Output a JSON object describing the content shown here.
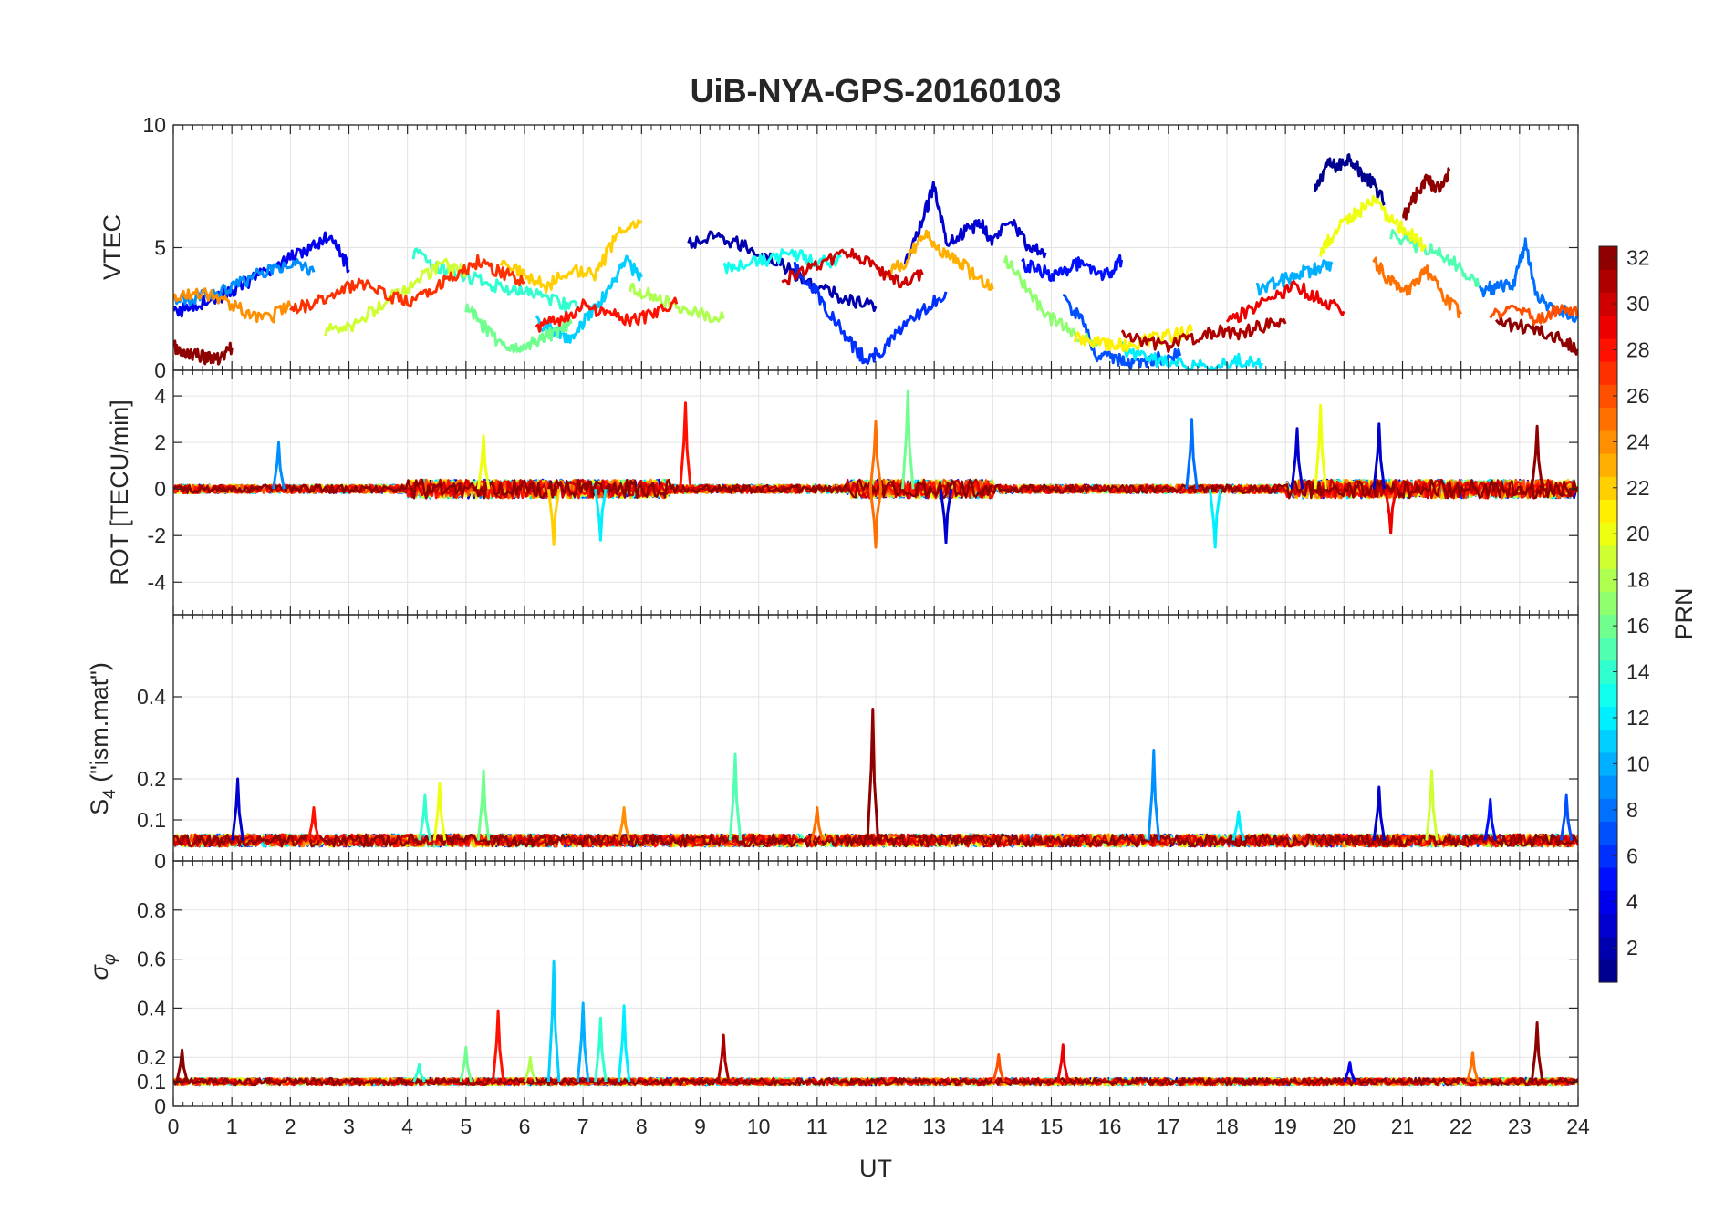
{
  "chart_data": {
    "type": "line",
    "title": "UiB-NYA-GPS-20160103",
    "xlabel": "UT",
    "x_range": [
      0,
      24
    ],
    "x_ticks": [
      "0",
      "1",
      "2",
      "3",
      "4",
      "5",
      "6",
      "7",
      "8",
      "9",
      "10",
      "11",
      "12",
      "13",
      "14",
      "15",
      "16",
      "17",
      "18",
      "19",
      "20",
      "21",
      "22",
      "23",
      "24"
    ],
    "grid": true,
    "colorbar": {
      "label": "PRN",
      "range": [
        1,
        32
      ],
      "colormap": "jet",
      "ticks": [
        "2",
        "4",
        "6",
        "8",
        "10",
        "12",
        "14",
        "16",
        "18",
        "20",
        "22",
        "24",
        "26",
        "28",
        "30",
        "32"
      ],
      "tick_values": [
        2,
        4,
        6,
        8,
        10,
        12,
        14,
        16,
        18,
        20,
        22,
        24,
        26,
        28,
        30,
        32
      ]
    },
    "panels": [
      {
        "id": "vtec",
        "ylabel": "VTEC",
        "ylim": [
          0,
          10
        ],
        "y_tick_values": [
          0,
          5,
          10
        ],
        "y_ticks": [
          "0",
          "5",
          "10"
        ],
        "series": [
          {
            "prn": 1,
            "x": [
              19.5,
              19.7,
              19.9,
              20.1,
              20.3,
              20.5,
              20.7
            ],
            "y": [
              7.2,
              8.4,
              8.3,
              8.7,
              8.0,
              7.6,
              6.8
            ]
          },
          {
            "prn": 2,
            "x": [
              8.8,
              9.2,
              9.6,
              10.0,
              10.4,
              10.8,
              11.2,
              11.6,
              12.0
            ],
            "y": [
              5.1,
              5.4,
              5.2,
              4.8,
              4.3,
              3.6,
              3.2,
              2.8,
              2.6
            ]
          },
          {
            "prn": 3,
            "x": [
              12.5,
              12.8,
              13.0,
              13.2,
              13.5,
              13.8,
              14.0,
              14.3,
              14.6,
              14.9
            ],
            "y": [
              4.2,
              6.1,
              7.6,
              5.3,
              5.6,
              6.0,
              5.2,
              6.3,
              5.0,
              4.8
            ]
          },
          {
            "prn": 4,
            "x": [
              0.0,
              0.4,
              0.8,
              1.2,
              1.6,
              2.0,
              2.4,
              2.7,
              3.0
            ],
            "y": [
              2.3,
              2.7,
              3.0,
              3.5,
              4.0,
              4.6,
              5.1,
              5.6,
              4.1
            ]
          },
          {
            "prn": 5,
            "x": [
              14.5,
              14.8,
              15.1,
              15.4,
              15.7,
              16.0,
              16.2
            ],
            "y": [
              4.3,
              4.1,
              3.8,
              4.4,
              4.0,
              3.9,
              4.5
            ]
          },
          {
            "prn": 6,
            "x": [
              10.6,
              10.9,
              11.2,
              11.5,
              11.8,
              12.1,
              12.4,
              12.8,
              13.2
            ],
            "y": [
              4.2,
              3.5,
              2.4,
              1.3,
              0.5,
              0.7,
              1.6,
              2.4,
              3.2
            ]
          },
          {
            "prn": 7,
            "x": [
              15.2,
              15.5,
              15.8,
              16.1,
              16.4,
              16.8,
              17.2
            ],
            "y": [
              2.9,
              2.1,
              0.5,
              0.5,
              0.3,
              0.5,
              0.6
            ]
          },
          {
            "prn": 8,
            "x": [
              22.3,
              22.6,
              22.9,
              23.1,
              23.3,
              23.6,
              24.0
            ],
            "y": [
              3.2,
              3.4,
              3.5,
              5.2,
              3.0,
              2.5,
              2.2
            ]
          },
          {
            "prn": 9,
            "x": [
              0.0,
              0.4,
              0.8,
              1.2,
              1.6,
              2.0,
              2.4
            ],
            "y": [
              2.8,
              3.0,
              3.2,
              3.6,
              4.1,
              4.4,
              4.0
            ]
          },
          {
            "prn": 10,
            "x": [
              18.5,
              18.9,
              19.2,
              19.5,
              19.8
            ],
            "y": [
              3.3,
              3.6,
              3.9,
              4.1,
              4.3
            ]
          },
          {
            "prn": 11,
            "x": [
              6.2,
              6.5,
              6.8,
              7.1,
              7.4,
              7.7,
              8.0
            ],
            "y": [
              2.0,
              1.6,
              1.2,
              2.3,
              3.1,
              4.5,
              3.8
            ]
          },
          {
            "prn": 12,
            "x": [
              16.2,
              16.6,
              17.0,
              17.4,
              17.8,
              18.2,
              18.6
            ],
            "y": [
              0.9,
              0.5,
              0.3,
              0.2,
              0.3,
              0.4,
              0.3
            ]
          },
          {
            "prn": 13,
            "x": [
              9.4,
              9.8,
              10.2,
              10.6,
              11.0,
              11.4
            ],
            "y": [
              4.1,
              4.4,
              4.5,
              4.8,
              4.3,
              4.6
            ]
          },
          {
            "prn": 14,
            "x": [
              4.1,
              4.5,
              4.9,
              5.3,
              5.7,
              6.1,
              6.5,
              6.9
            ],
            "y": [
              4.8,
              4.2,
              3.9,
              3.6,
              3.3,
              3.1,
              2.8,
              2.5
            ]
          },
          {
            "prn": 15,
            "x": [
              20.8,
              21.2,
              21.6,
              22.0,
              22.3
            ],
            "y": [
              5.6,
              5.1,
              4.8,
              4.2,
              3.4
            ]
          },
          {
            "prn": 16,
            "x": [
              5.0,
              5.3,
              5.6,
              5.9,
              6.2,
              6.5,
              6.8
            ],
            "y": [
              2.6,
              1.8,
              1.1,
              0.9,
              1.2,
              1.5,
              1.9
            ]
          },
          {
            "prn": 17,
            "x": [
              14.2,
              14.6,
              15.0,
              15.4,
              15.8
            ],
            "y": [
              4.6,
              3.2,
              2.1,
              1.5,
              1.1
            ]
          },
          {
            "prn": 18,
            "x": [
              7.8,
              8.2,
              8.6,
              9.0,
              9.4
            ],
            "y": [
              3.4,
              3.0,
              2.6,
              2.3,
              2.1
            ]
          },
          {
            "prn": 19,
            "x": [
              2.6,
              3.0,
              3.4,
              3.8,
              4.2,
              4.6,
              5.0
            ],
            "y": [
              1.6,
              1.7,
              2.4,
              3.1,
              3.7,
              4.3,
              4.0
            ]
          },
          {
            "prn": 20,
            "x": [
              19.6,
              19.9,
              20.2,
              20.5,
              20.8,
              21.1,
              21.4
            ],
            "y": [
              4.8,
              5.8,
              6.4,
              6.9,
              6.1,
              5.6,
              5.0
            ]
          },
          {
            "prn": 21,
            "x": [
              15.4,
              15.8,
              16.2,
              16.6,
              17.0,
              17.4
            ],
            "y": [
              1.3,
              1.1,
              1.0,
              1.2,
              1.4,
              1.6
            ]
          },
          {
            "prn": 22,
            "x": [
              5.6,
              6.0,
              6.4,
              6.8,
              7.2,
              7.6,
              8.0
            ],
            "y": [
              4.4,
              3.9,
              3.4,
              4.2,
              3.8,
              5.6,
              6.1
            ]
          },
          {
            "prn": 23,
            "x": [
              12.2,
              12.5,
              12.8,
              13.1,
              13.4,
              13.7,
              14.0
            ],
            "y": [
              3.9,
              4.4,
              5.6,
              4.9,
              4.5,
              3.8,
              3.3
            ]
          },
          {
            "prn": 24,
            "x": [
              0.0,
              0.4,
              0.8,
              1.2,
              1.6,
              2.0
            ],
            "y": [
              3.0,
              3.2,
              2.9,
              2.4,
              2.1,
              2.6
            ]
          },
          {
            "prn": 25,
            "x": [
              20.5,
              20.8,
              21.1,
              21.4,
              21.7,
              22.0
            ],
            "y": [
              4.5,
              3.6,
              3.2,
              4.1,
              3.0,
              2.3
            ]
          },
          {
            "prn": 26,
            "x": [
              22.5,
              22.9,
              23.3,
              23.7,
              24.0
            ],
            "y": [
              2.2,
              2.4,
              2.1,
              2.5,
              2.4
            ]
          },
          {
            "prn": 27,
            "x": [
              2.0,
              2.4,
              2.8,
              3.2,
              3.6,
              4.0,
              4.4,
              4.8,
              5.2,
              5.6,
              6.0
            ],
            "y": [
              2.5,
              2.7,
              3.2,
              3.6,
              3.1,
              2.8,
              3.3,
              3.9,
              4.4,
              4.0,
              3.6
            ]
          },
          {
            "prn": 28,
            "x": [
              6.2,
              6.6,
              7.0,
              7.4,
              7.8,
              8.2,
              8.6
            ],
            "y": [
              1.8,
              2.1,
              2.6,
              2.4,
              2.0,
              2.3,
              2.7
            ]
          },
          {
            "prn": 29,
            "x": [
              18.0,
              18.4,
              18.8,
              19.2,
              19.6,
              20.0
            ],
            "y": [
              2.0,
              2.5,
              3.0,
              3.4,
              2.9,
              2.4
            ]
          },
          {
            "prn": 30,
            "x": [
              10.4,
              10.8,
              11.2,
              11.6,
              12.0,
              12.4,
              12.8
            ],
            "y": [
              3.6,
              4.1,
              4.5,
              4.8,
              4.1,
              3.6,
              3.9
            ]
          },
          {
            "prn": 31,
            "x": [
              16.2,
              16.6,
              17.0,
              17.4,
              17.8,
              18.2,
              18.6,
              19.0
            ],
            "y": [
              1.6,
              1.2,
              1.0,
              1.3,
              1.6,
              1.5,
              1.8,
              1.9
            ]
          },
          {
            "prn": 32,
            "x": [
              0.0,
              0.2,
              0.4,
              0.6,
              0.8,
              1.0
            ],
            "y": [
              1.0,
              0.7,
              0.6,
              0.5,
              0.5,
              0.9
            ]
          },
          {
            "prn": 32,
            "x": [
              21.0,
              21.2,
              21.4,
              21.6,
              21.8
            ],
            "y": [
              6.2,
              7.0,
              7.8,
              7.4,
              8.1
            ]
          },
          {
            "prn": 32,
            "x": [
              22.6,
              23.0,
              23.4,
              23.8,
              24.0
            ],
            "y": [
              2.0,
              1.8,
              1.6,
              1.2,
              0.8
            ]
          }
        ]
      },
      {
        "id": "rot",
        "ylabel": "ROT [TECU/min]",
        "ylim": [
          -5.4,
          5.1
        ],
        "y_tick_values": [
          -4,
          -2,
          0,
          2,
          4
        ],
        "y_ticks": [
          "-4",
          "-2",
          "0",
          "2",
          "4"
        ],
        "spikes": [
          {
            "prn": 9,
            "x": 1.8,
            "y": 2.0
          },
          {
            "prn": 20,
            "x": 5.3,
            "y": 2.3
          },
          {
            "prn": 22,
            "x": 6.5,
            "y": -2.4
          },
          {
            "prn": 12,
            "x": 7.3,
            "y": -2.2
          },
          {
            "prn": 28,
            "x": 8.75,
            "y": 3.7
          },
          {
            "prn": 25,
            "x": 12.0,
            "y": 2.9
          },
          {
            "prn": 25,
            "x": 12.0,
            "y": -2.5
          },
          {
            "prn": 16,
            "x": 12.55,
            "y": 4.2
          },
          {
            "prn": 3,
            "x": 13.2,
            "y": -2.3
          },
          {
            "prn": 8,
            "x": 17.4,
            "y": 3.0
          },
          {
            "prn": 12,
            "x": 17.8,
            "y": -2.5
          },
          {
            "prn": 3,
            "x": 19.2,
            "y": 2.6
          },
          {
            "prn": 20,
            "x": 19.6,
            "y": 3.6
          },
          {
            "prn": 3,
            "x": 20.6,
            "y": 2.8
          },
          {
            "prn": 29,
            "x": 20.8,
            "y": -1.9
          },
          {
            "prn": 32,
            "x": 23.3,
            "y": 2.7
          }
        ]
      },
      {
        "id": "s4",
        "ylabel": "S_4 (\"ism.mat\")",
        "ylim": [
          0,
          0.6
        ],
        "y_tick_values": [
          0,
          0.1,
          0.2,
          0.4
        ],
        "y_ticks": [
          "0",
          "0.1",
          "0.2",
          "0.4"
        ],
        "baseline": 0.05,
        "spikes": [
          {
            "prn": 3,
            "x": 1.1,
            "y": 0.2
          },
          {
            "prn": 28,
            "x": 2.4,
            "y": 0.13
          },
          {
            "prn": 14,
            "x": 4.3,
            "y": 0.16
          },
          {
            "prn": 20,
            "x": 4.55,
            "y": 0.19
          },
          {
            "prn": 16,
            "x": 5.3,
            "y": 0.22
          },
          {
            "prn": 24,
            "x": 7.7,
            "y": 0.13
          },
          {
            "prn": 15,
            "x": 9.6,
            "y": 0.26
          },
          {
            "prn": 25,
            "x": 11.0,
            "y": 0.13
          },
          {
            "prn": 32,
            "x": 11.95,
            "y": 0.37
          },
          {
            "prn": 9,
            "x": 16.75,
            "y": 0.27
          },
          {
            "prn": 12,
            "x": 18.2,
            "y": 0.12
          },
          {
            "prn": 3,
            "x": 20.6,
            "y": 0.18
          },
          {
            "prn": 19,
            "x": 21.5,
            "y": 0.22
          },
          {
            "prn": 5,
            "x": 22.5,
            "y": 0.15
          },
          {
            "prn": 7,
            "x": 23.8,
            "y": 0.16
          }
        ]
      },
      {
        "id": "sigma",
        "ylabel": "σ_φ",
        "ylim": [
          0,
          1
        ],
        "y_tick_values": [
          0,
          0.1,
          0.2,
          0.4,
          0.6,
          0.8
        ],
        "y_ticks": [
          "0",
          "0.1",
          "0.2",
          "0.4",
          "0.6",
          "0.8"
        ],
        "baseline": 0.1,
        "spikes": [
          {
            "prn": 32,
            "x": 0.15,
            "y": 0.23
          },
          {
            "prn": 14,
            "x": 4.2,
            "y": 0.17
          },
          {
            "prn": 16,
            "x": 5.0,
            "y": 0.24
          },
          {
            "prn": 28,
            "x": 5.55,
            "y": 0.39
          },
          {
            "prn": 18,
            "x": 6.1,
            "y": 0.2
          },
          {
            "prn": 11,
            "x": 6.5,
            "y": 0.59
          },
          {
            "prn": 10,
            "x": 7.0,
            "y": 0.42
          },
          {
            "prn": 14,
            "x": 7.3,
            "y": 0.36
          },
          {
            "prn": 12,
            "x": 7.7,
            "y": 0.41
          },
          {
            "prn": 31,
            "x": 9.4,
            "y": 0.29
          },
          {
            "prn": 26,
            "x": 14.1,
            "y": 0.21
          },
          {
            "prn": 29,
            "x": 15.2,
            "y": 0.25
          },
          {
            "prn": 4,
            "x": 20.1,
            "y": 0.18
          },
          {
            "prn": 25,
            "x": 22.2,
            "y": 0.22
          },
          {
            "prn": 32,
            "x": 23.3,
            "y": 0.34
          }
        ]
      }
    ]
  }
}
